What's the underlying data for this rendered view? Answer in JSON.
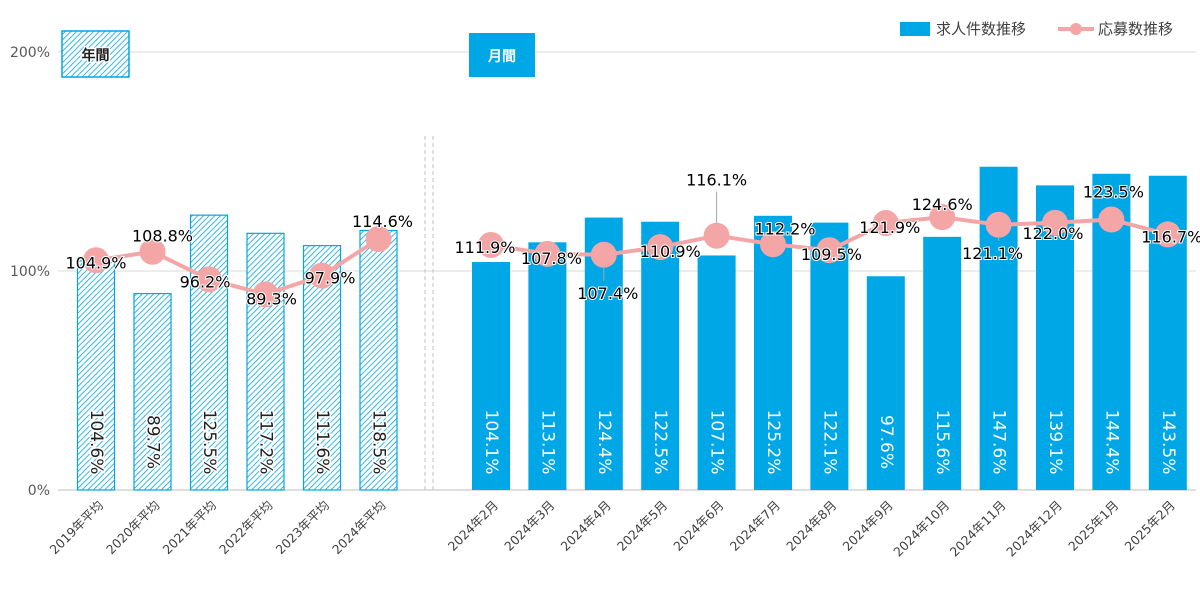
{
  "chart_data": {
    "type": "bar",
    "title": "",
    "xlabel": "",
    "ylabel": "",
    "ylim": [
      0,
      200
    ],
    "yticks": [
      "0%",
      "100%",
      "200%"
    ],
    "grid": true,
    "legend_position": "top-right",
    "legend": {
      "bar_label": "求人件数推移",
      "line_label": "応募数推移"
    },
    "colors": {
      "bar": "#00a7e6",
      "bar_annual_hatch": "#00a7e6",
      "line": "#f4a6a6",
      "grid": "#d9d9d9"
    },
    "groups": [
      {
        "label": "年間",
        "style": "hatched",
        "categories": [
          "2019年平均",
          "2020年平均",
          "2021年平均",
          "2022年平均",
          "2023年平均",
          "2024年平均"
        ],
        "bar_values": [
          104.6,
          89.7,
          125.5,
          117.2,
          111.6,
          118.5
        ],
        "bar_labels": [
          "104.6%",
          "89.7%",
          "125.5%",
          "117.2%",
          "111.6%",
          "118.5%"
        ],
        "line_values": [
          104.9,
          108.8,
          96.2,
          89.3,
          97.9,
          114.6
        ],
        "line_labels": [
          "104.9%",
          "108.8%",
          "96.2%",
          "89.3%",
          "97.9%",
          "114.6%"
        ]
      },
      {
        "label": "月間",
        "style": "solid",
        "categories": [
          "2024年2月",
          "2024年3月",
          "2024年4月",
          "2024年5月",
          "2024年6月",
          "2024年7月",
          "2024年8月",
          "2024年9月",
          "2024年10月",
          "2024年11月",
          "2024年12月",
          "2025年1月",
          "2025年2月"
        ],
        "bar_values": [
          104.1,
          113.1,
          124.4,
          122.5,
          107.1,
          125.2,
          122.1,
          97.6,
          115.6,
          147.6,
          139.1,
          144.4,
          143.5
        ],
        "bar_labels": [
          "104.1%",
          "113.1%",
          "124.4%",
          "122.5%",
          "107.1%",
          "125.2%",
          "122.1%",
          "97.6%",
          "115.6%",
          "147.6%",
          "139.1%",
          "144.4%",
          "143.5%"
        ],
        "line_values": [
          111.9,
          107.8,
          107.4,
          110.9,
          116.1,
          112.2,
          109.5,
          121.9,
          124.6,
          121.1,
          122.0,
          123.5,
          116.7
        ],
        "line_labels": [
          "111.9%",
          "107.8%",
          "107.4%",
          "110.9%",
          "116.1%",
          "112.2%",
          "109.5%",
          "121.9%",
          "124.6%",
          "121.1%",
          "122.0%",
          "123.5%",
          "116.7%"
        ]
      }
    ]
  }
}
